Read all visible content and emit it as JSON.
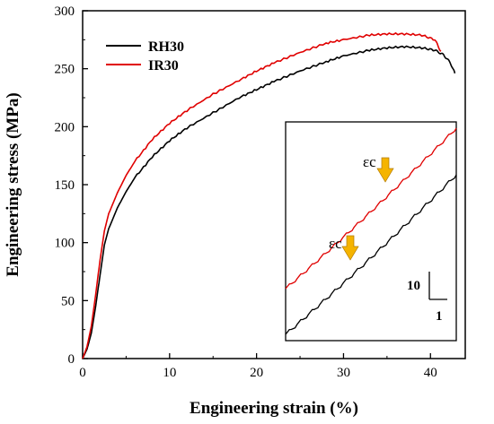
{
  "chart_data": {
    "type": "line",
    "xlabel": "Engineering strain (%)",
    "ylabel": "Engineering stress (MPa)",
    "xlim": [
      0,
      44
    ],
    "ylim": [
      0,
      300
    ],
    "x_ticks": [
      "0",
      "10",
      "20",
      "30",
      "40"
    ],
    "y_ticks": [
      "0",
      "50",
      "100",
      "150",
      "200",
      "250",
      "300"
    ],
    "grid": false,
    "legend": {
      "position": "top-left",
      "entries": [
        "RH30",
        "IR30"
      ]
    },
    "series": [
      {
        "name": "RH30",
        "color": "#000000",
        "x": [
          0,
          0.5,
          1.0,
          1.5,
          2.0,
          2.5,
          3.0,
          4,
          5,
          6,
          8,
          10,
          12,
          15,
          18,
          20,
          22,
          25,
          28,
          30,
          33,
          35,
          37,
          39,
          40.5,
          41.5,
          42.3,
          42.8
        ],
        "y": [
          0,
          8,
          22,
          45,
          72,
          98,
          112,
          130,
          144,
          156,
          174,
          188,
          199,
          212,
          225,
          232,
          239,
          248,
          256,
          261,
          266,
          268,
          269,
          268,
          266,
          262,
          255,
          246
        ]
      },
      {
        "name": "IR30",
        "color": "#e00000",
        "x": [
          0,
          0.5,
          1.0,
          1.5,
          2.0,
          2.5,
          3.0,
          4,
          5,
          6,
          8,
          10,
          12,
          15,
          18,
          20,
          22,
          25,
          28,
          30,
          33,
          35,
          37,
          39,
          40.5,
          41.2
        ],
        "y": [
          0,
          10,
          28,
          55,
          85,
          110,
          125,
          143,
          158,
          170,
          189,
          203,
          214,
          228,
          240,
          248,
          255,
          264,
          272,
          275,
          279,
          280,
          280,
          279,
          275,
          265
        ]
      }
    ],
    "inset": {
      "scale_bar_y_label": "10",
      "scale_bar_x_label": "1",
      "annotations": [
        "εc",
        "εc"
      ],
      "arrow_color": "#f5b400"
    }
  }
}
